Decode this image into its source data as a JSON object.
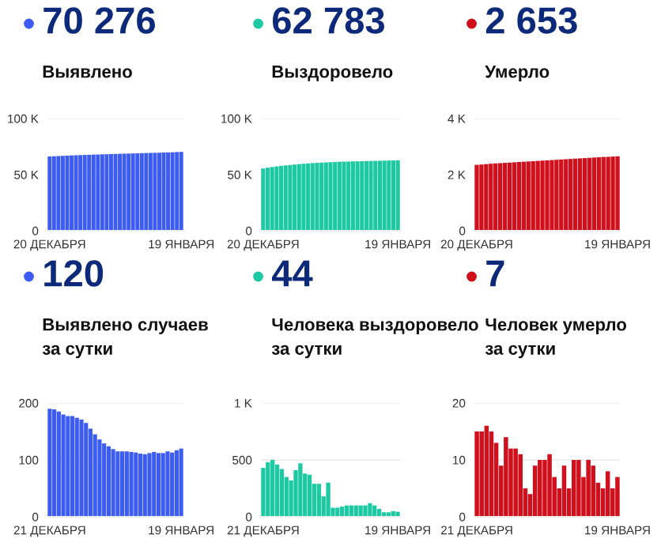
{
  "chart_data": [
    {
      "type": "bar",
      "title": "70 276",
      "subtitle": "Выявлено",
      "categories": [
        "20 ДЕКАБРЯ",
        null,
        null,
        null,
        null,
        null,
        null,
        null,
        null,
        null,
        null,
        null,
        null,
        null,
        null,
        null,
        null,
        null,
        null,
        null,
        null,
        null,
        null,
        null,
        null,
        null,
        null,
        null,
        null,
        null,
        "19 ЯНВАРЯ"
      ],
      "series": [
        {
          "color": "#3d5cf2",
          "values": [
            66200,
            66400,
            66550,
            66750,
            66900,
            67100,
            67250,
            67400,
            67550,
            67700,
            67850,
            67950,
            68100,
            68200,
            68350,
            68450,
            68550,
            68700,
            68800,
            68900,
            69000,
            69150,
            69250,
            69350,
            69450,
            69550,
            69700,
            69800,
            69950,
            70150,
            70276
          ]
        }
      ],
      "ylim": [
        0,
        100000
      ],
      "yticks": [
        {
          "value": 0,
          "label": "0"
        },
        {
          "value": 50000,
          "label": "50 K"
        },
        {
          "value": 100000,
          "label": "100 K"
        }
      ],
      "grid": "y"
    },
    {
      "type": "bar",
      "title": "62 783",
      "subtitle": "Выздоровело",
      "categories": [
        "20 ДЕКАБРЯ",
        null,
        null,
        null,
        null,
        null,
        null,
        null,
        null,
        null,
        null,
        null,
        null,
        null,
        null,
        null,
        null,
        null,
        null,
        null,
        null,
        null,
        null,
        null,
        null,
        null,
        null,
        null,
        null,
        null,
        "19 ЯНВАРЯ"
      ],
      "series": [
        {
          "color": "#1cc9a2",
          "values": [
            55500,
            56200,
            56800,
            57300,
            57800,
            58200,
            58600,
            59000,
            59400,
            59700,
            60000,
            60300,
            60500,
            60700,
            60900,
            61100,
            61300,
            61500,
            61600,
            61700,
            61800,
            61900,
            62000,
            62100,
            62200,
            62300,
            62400,
            62500,
            62600,
            62700,
            62783
          ]
        }
      ],
      "ylim": [
        0,
        100000
      ],
      "yticks": [
        {
          "value": 0,
          "label": "0"
        },
        {
          "value": 50000,
          "label": "50 K"
        },
        {
          "value": 100000,
          "label": "100 K"
        }
      ],
      "grid": "y"
    },
    {
      "type": "bar",
      "title": "2 653",
      "subtitle": "Умерло",
      "categories": [
        "20 ДЕКАБРЯ",
        null,
        null,
        null,
        null,
        null,
        null,
        null,
        null,
        null,
        null,
        null,
        null,
        null,
        null,
        null,
        null,
        null,
        null,
        null,
        null,
        null,
        null,
        null,
        null,
        null,
        null,
        null,
        null,
        null,
        "19 ЯНВАРЯ"
      ],
      "series": [
        {
          "color": "#d0101c",
          "values": [
            2350,
            2360,
            2375,
            2390,
            2400,
            2410,
            2420,
            2430,
            2440,
            2450,
            2460,
            2470,
            2480,
            2490,
            2500,
            2510,
            2520,
            2530,
            2540,
            2550,
            2560,
            2570,
            2580,
            2590,
            2600,
            2610,
            2620,
            2630,
            2635,
            2645,
            2653
          ]
        }
      ],
      "ylim": [
        0,
        4000
      ],
      "yticks": [
        {
          "value": 0,
          "label": "0"
        },
        {
          "value": 2000,
          "label": "2 K"
        },
        {
          "value": 4000,
          "label": "4 K"
        }
      ],
      "grid": "y"
    },
    {
      "type": "bar",
      "title": "120",
      "subtitle": "Выявлено случаев\nза сутки",
      "categories": [
        "21 ДЕКАБРЯ",
        null,
        null,
        null,
        null,
        null,
        null,
        null,
        null,
        null,
        null,
        null,
        null,
        null,
        null,
        null,
        null,
        null,
        null,
        null,
        null,
        null,
        null,
        null,
        null,
        null,
        null,
        null,
        null,
        "19 ЯНВАРЯ"
      ],
      "series": [
        {
          "color": "#3d5cf2",
          "values": [
            190,
            189,
            185,
            180,
            177,
            177,
            174,
            171,
            165,
            155,
            145,
            136,
            129,
            124,
            119,
            115,
            115,
            115,
            114,
            113,
            111,
            110,
            112,
            114,
            112,
            112,
            115,
            113,
            117,
            120
          ]
        }
      ],
      "ylim": [
        0,
        200
      ],
      "yticks": [
        0,
        100,
        200
      ],
      "grid": "y"
    },
    {
      "type": "bar",
      "title": "44",
      "subtitle": "Человека выздоровело\nза сутки",
      "categories": [
        "21 ДЕКАБРЯ",
        null,
        null,
        null,
        null,
        null,
        null,
        null,
        null,
        null,
        null,
        null,
        null,
        null,
        null,
        null,
        null,
        null,
        null,
        null,
        null,
        null,
        null,
        null,
        null,
        null,
        null,
        null,
        null,
        "19 ЯНВАРЯ"
      ],
      "series": [
        {
          "color": "#1cc9a2",
          "values": [
            430,
            480,
            500,
            460,
            420,
            350,
            320,
            410,
            470,
            380,
            370,
            290,
            290,
            180,
            300,
            80,
            80,
            90,
            100,
            100,
            100,
            100,
            100,
            120,
            100,
            70,
            40,
            40,
            50,
            44
          ]
        }
      ],
      "ylim": [
        0,
        1000
      ],
      "yticks": [
        0,
        500,
        {
          "value": 1000,
          "label": "1 K"
        }
      ],
      "grid": "y"
    },
    {
      "type": "bar",
      "title": "7",
      "subtitle": "Человек умерло\nза сутки",
      "categories": [
        "21 ДЕКАБРЯ",
        null,
        null,
        null,
        null,
        null,
        null,
        null,
        null,
        null,
        null,
        null,
        null,
        null,
        null,
        null,
        null,
        null,
        null,
        null,
        null,
        null,
        null,
        null,
        null,
        null,
        null,
        null,
        null,
        "19 ЯНВАРЯ"
      ],
      "series": [
        {
          "color": "#d0101c",
          "values": [
            15,
            15,
            16,
            15,
            13,
            9,
            14,
            12,
            12,
            11,
            5,
            4,
            9,
            10,
            10,
            11,
            7,
            5,
            9,
            5,
            10,
            10,
            7,
            10,
            9,
            6,
            5,
            8,
            5,
            7
          ]
        }
      ],
      "ylim": [
        0,
        20
      ],
      "yticks": [
        0,
        10,
        20
      ],
      "grid": "y"
    }
  ]
}
